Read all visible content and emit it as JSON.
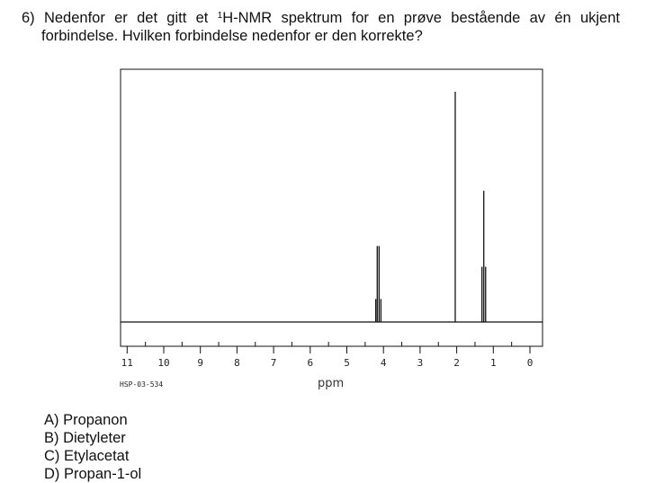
{
  "question": {
    "number": "6)",
    "line1_pre": "Nedenfor er det gitt et ",
    "sup": "1",
    "line1_post": "H-NMR spektrum for en prøve bestående av én ukjent",
    "line2": "forbindelse. Hvilken forbindelse nedenfor er den korrekte?"
  },
  "spectrum": {
    "sample_code": "HSP-03-534",
    "x_axis_label": "ppm",
    "ticks": [
      "11",
      "10",
      "9",
      "8",
      "7",
      "6",
      "5",
      "4",
      "3",
      "2",
      "1",
      "0"
    ]
  },
  "chart_data": {
    "type": "line",
    "title": "",
    "xlabel": "ppm",
    "ylabel": "",
    "xlim": [
      11,
      0
    ],
    "x_reversed": true,
    "ylim": [
      0,
      1
    ],
    "grid": false,
    "peaks": [
      {
        "ppm": 4.21,
        "height": 0.1
      },
      {
        "ppm": 4.17,
        "height": 0.33
      },
      {
        "ppm": 4.12,
        "height": 0.33
      },
      {
        "ppm": 4.07,
        "height": 0.1
      },
      {
        "ppm": 2.04,
        "height": 1.0
      },
      {
        "ppm": 1.31,
        "height": 0.24
      },
      {
        "ppm": 1.26,
        "height": 0.57
      },
      {
        "ppm": 1.21,
        "height": 0.24
      }
    ]
  },
  "answers": [
    "A) Propanon",
    "B) Dietyleter",
    "C) Etylacetat",
    "D) Propan-1-ol"
  ]
}
